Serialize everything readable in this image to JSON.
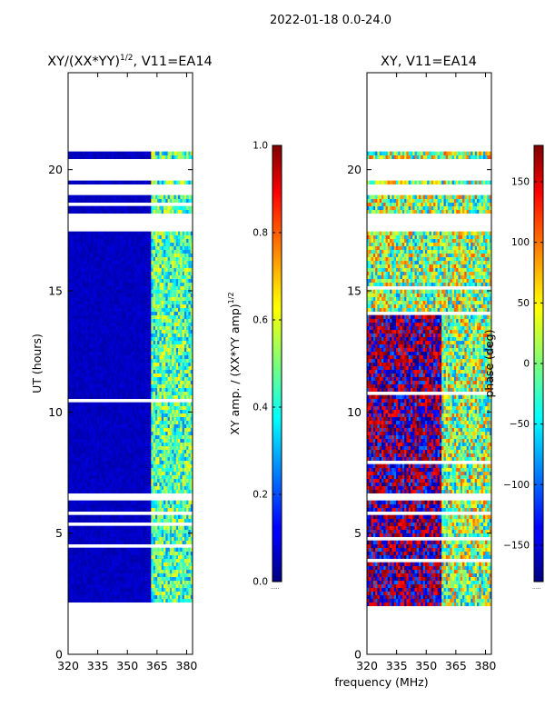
{
  "suptitle": "2022-01-18 0.0-24.0",
  "shared_xlabel": "frequency (MHz)",
  "chart_data": [
    {
      "type": "heatmap",
      "title": "XY/(XX*YY)^(1/2), V11=EA14",
      "title_main": "XY/(XX*YY)",
      "title_sup": "1/2",
      "title_tail": ", V11=EA14",
      "xlabel": "",
      "ylabel": "UT (hours)",
      "xlim": [
        320,
        383
      ],
      "ylim": [
        0,
        24
      ],
      "xticks": [
        320,
        335,
        350,
        365,
        380
      ],
      "yticks": [
        0,
        5,
        10,
        15,
        20
      ],
      "colormap": "jet",
      "data_rows_hours": [
        2.0,
        23.4
      ],
      "gaps_hours": [
        [
          5.8,
          5.9
        ],
        [
          6.3,
          6.6
        ],
        [
          17.4,
          18.2
        ],
        [
          19.0,
          19.4
        ],
        [
          19.6,
          20.4
        ],
        [
          20.8,
          23.4
        ]
      ],
      "notes": "Low amplitude (~0.05) below ~362 MHz, higher (~0.3-0.6) above 362 MHz"
    },
    {
      "type": "heatmap",
      "title": "XY, V11=EA14",
      "xlabel": "",
      "ylabel": "",
      "xlim": [
        320,
        383
      ],
      "ylim": [
        0,
        24
      ],
      "xticks": [
        320,
        335,
        350,
        365,
        380
      ],
      "yticks": [
        0,
        5,
        10,
        15,
        20
      ],
      "colormap": "jet",
      "data_rows_hours": [
        2.0,
        23.4
      ],
      "gaps_hours": [
        [
          5.8,
          5.9
        ],
        [
          6.3,
          6.6
        ],
        [
          17.4,
          18.2
        ],
        [
          19.0,
          19.4
        ],
        [
          19.6,
          20.4
        ],
        [
          20.8,
          23.4
        ]
      ],
      "notes": "Phase in degrees, range -180 to 180"
    }
  ],
  "colorbars": [
    {
      "label_main": "XY amp. / (XX*YY amp)",
      "label_sup": "1/2",
      "range": [
        0.0,
        1.0
      ],
      "ticks": [
        "0.0",
        "0.2",
        "0.4",
        "0.6",
        "0.8",
        "1.0"
      ],
      "tick_values": [
        0,
        0.2,
        0.4,
        0.6,
        0.8,
        1.0
      ],
      "footer": "....."
    },
    {
      "label": "phase (deg)",
      "range": [
        -180,
        180
      ],
      "ticks": [
        "−150",
        "−100",
        "−50",
        "0",
        "50",
        "100",
        "150"
      ],
      "tick_values": [
        -150,
        -100,
        -50,
        0,
        50,
        100,
        150
      ],
      "footer": "....."
    }
  ]
}
